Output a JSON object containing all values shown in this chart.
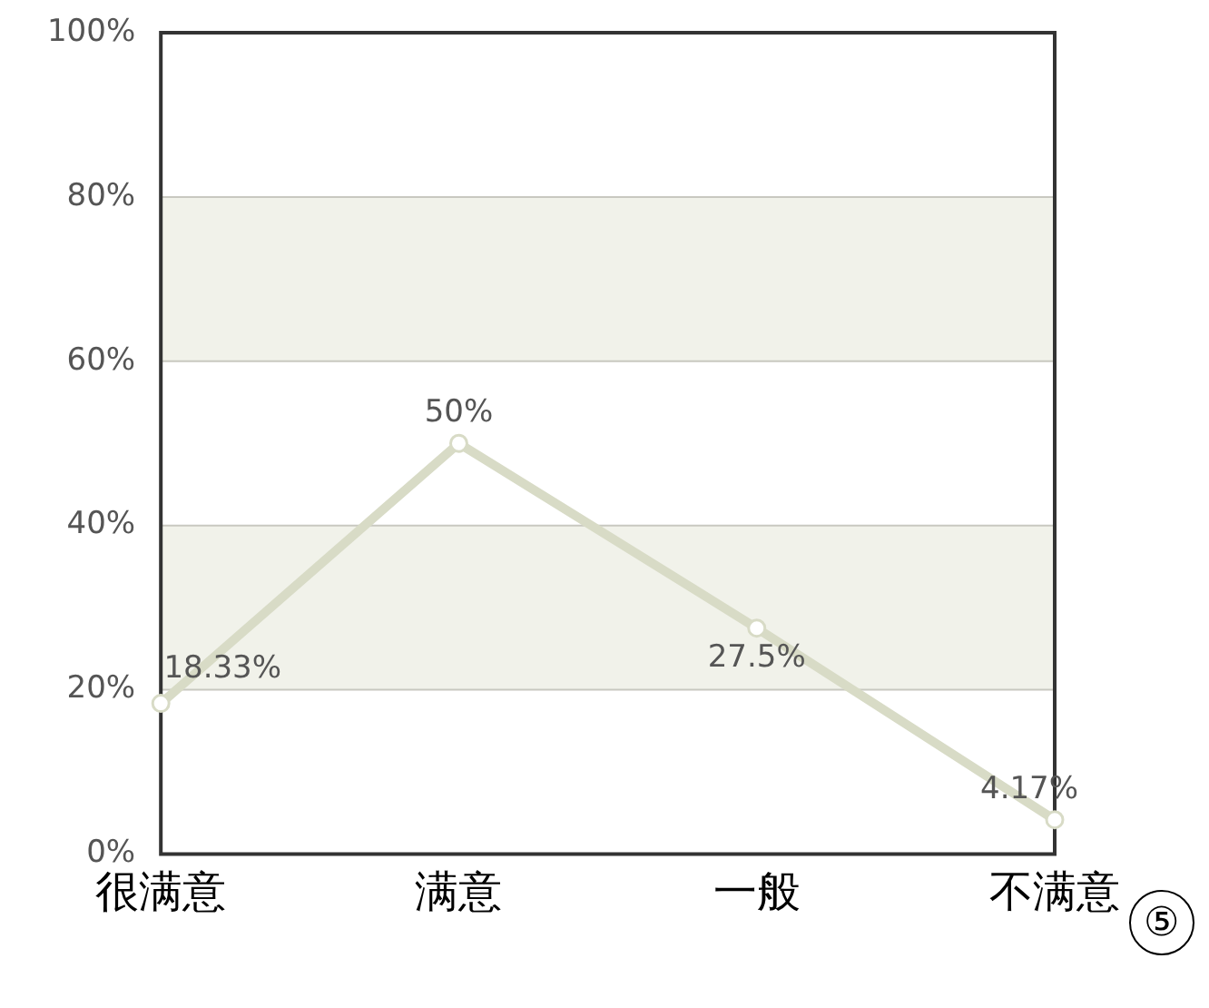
{
  "chart_data": {
    "type": "line",
    "categories": [
      "很满意",
      "满意",
      "一般",
      "不满意"
    ],
    "series": [
      {
        "color": "#d8dbc6",
        "values": [
          18.33,
          50,
          27.5,
          4.17
        ],
        "value_labels": [
          "18.33%",
          "50%",
          "27.5%",
          "4.17%"
        ]
      }
    ],
    "ylim": [
      0,
      100
    ],
    "yticks": [
      {
        "value": 0,
        "label": "0%"
      },
      {
        "value": 20,
        "label": "20%"
      },
      {
        "value": 40,
        "label": "40%"
      },
      {
        "value": 60,
        "label": "60%"
      },
      {
        "value": 80,
        "label": "80%"
      },
      {
        "value": 100,
        "label": "100%"
      }
    ],
    "bands": [
      {
        "axis": "y",
        "from": 20,
        "to": 40,
        "color": "#f1f2ea"
      },
      {
        "axis": "y",
        "from": 60,
        "to": 80,
        "color": "#f1f2ea"
      }
    ],
    "grid": "y",
    "marker": "circle",
    "line_style": "solid",
    "legend": false,
    "annotations": [
      "⑤"
    ]
  }
}
